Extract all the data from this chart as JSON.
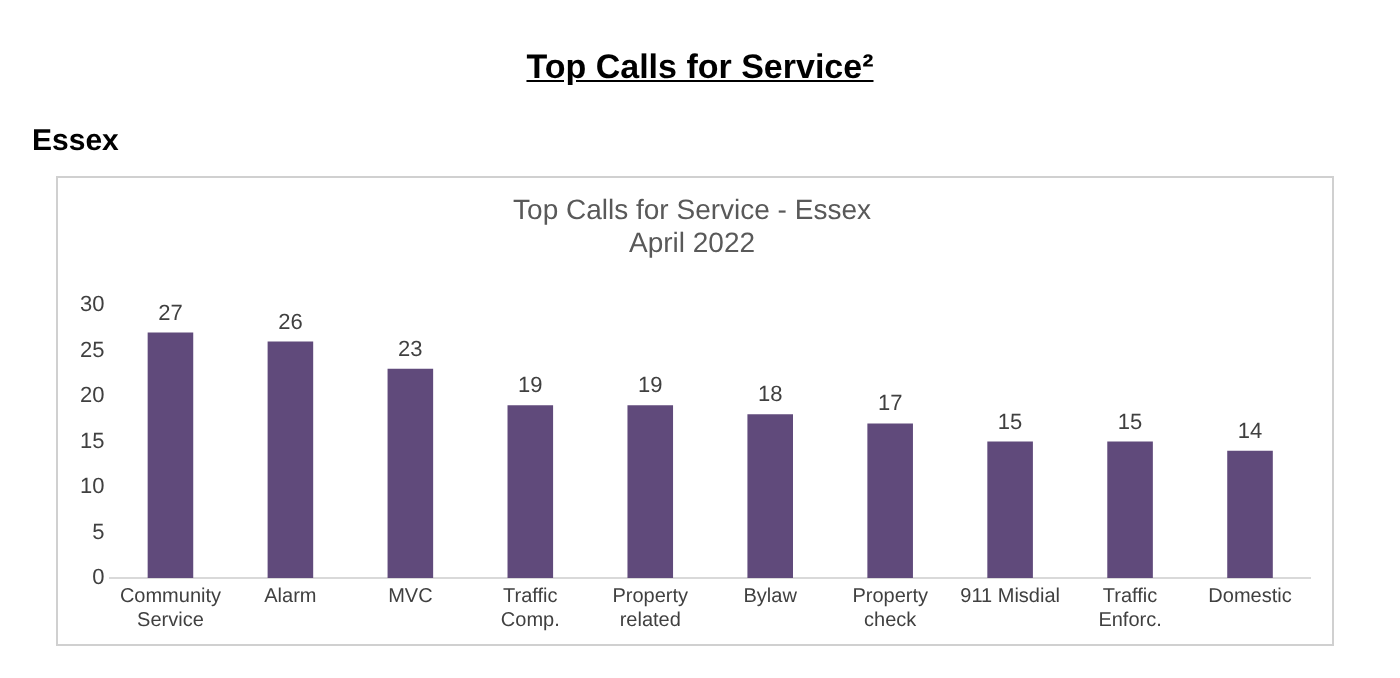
{
  "chart_data": {
    "type": "bar",
    "title": "Top Calls for Service - Essex",
    "subtitle": "April 2022",
    "annotations": [
      "Top Calls for Service²",
      "Essex"
    ],
    "categories": [
      "Community Service",
      "Alarm",
      "MVC",
      "Traffic Comp.",
      "Property related",
      "Bylaw",
      "Property check",
      "911 Misdial",
      "Traffic Enforc.",
      "Domestic"
    ],
    "values": [
      27,
      26,
      23,
      19,
      19,
      18,
      17,
      15,
      15,
      14
    ],
    "color": "#604a7b",
    "ylim": [
      0,
      30
    ],
    "yticks": [
      0,
      5,
      10,
      15,
      20,
      25,
      30
    ],
    "grid": false,
    "legend": false,
    "data_labels": true
  }
}
